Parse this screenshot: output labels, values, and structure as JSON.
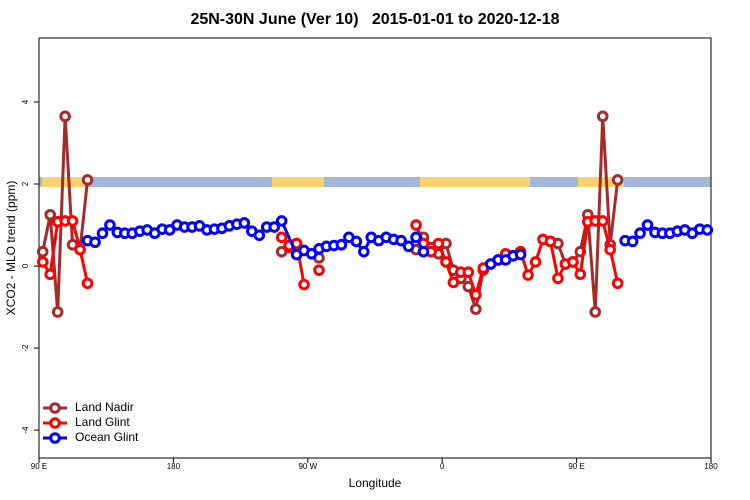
{
  "chart_data": {
    "type": "line",
    "title": "25N-30N June (Ver 10)   2015-01-01 to 2020-12-18",
    "xlabel": "Longitude",
    "ylabel": "XCO2 - MLO trend (ppm)",
    "xlim": [
      90,
      540
    ],
    "ylim": [
      -4.68,
      5.56
    ],
    "xticks": [
      {
        "value": 90,
        "label": "90 E"
      },
      {
        "value": 180,
        "label": "180"
      },
      {
        "value": 270,
        "label": "90 W"
      },
      {
        "value": 360,
        "label": "0"
      },
      {
        "value": 450,
        "label": "90 E"
      },
      {
        "value": 540,
        "label": "180"
      }
    ],
    "yticks": [
      -4,
      -2,
      0,
      2,
      4
    ],
    "legend": "bottom-left",
    "series": [
      {
        "name": "Land Nadir",
        "color": "#a52a2a",
        "x": [
          92.5,
          97.5,
          102.5,
          107.5,
          112.5,
          117.5,
          122.5,
          127.5,
          252.5,
          257.5,
          262.5,
          277.5,
          282.5,
          342.5,
          347.5,
          352.5,
          357.5,
          362.5,
          367.5,
          372.5,
          377.5,
          382.5,
          387.5,
          392.5,
          432.5,
          437.5,
          442.5,
          447.5,
          452.5,
          457.5,
          462.5,
          467.5,
          472.5,
          477.5
        ],
        "values": [
          0.35,
          1.25,
          -1.12,
          3.65,
          0.52,
          0.4,
          2.1,
          null,
          0.35,
          0.45,
          0.55,
          0.2,
          null,
          0.4,
          0.7,
          0.45,
          0.3,
          0.55,
          -0.1,
          -0.3,
          -0.5,
          -1.05,
          -0.1,
          null,
          0.6,
          0.55,
          0.05,
          0.1,
          0.35,
          1.25,
          -1.12,
          3.65,
          0.52,
          2.1
        ]
      },
      {
        "name": "Land Glint",
        "color": "#ff0000",
        "x": [
          92.5,
          97.5,
          102.5,
          107.5,
          112.5,
          117.5,
          122.5,
          127.5,
          252.5,
          257.5,
          262.5,
          267.5,
          272.5,
          277.5,
          282.5,
          342.5,
          347.5,
          352.5,
          357.5,
          362.5,
          367.5,
          372.5,
          377.5,
          382.5,
          387.5,
          392.5,
          397.5,
          402.5,
          407.5,
          412.5,
          417.5,
          422.5,
          427.5,
          432.5,
          437.5,
          442.5,
          447.5,
          452.5,
          457.5,
          462.5,
          467.5,
          472.5,
          477.5
        ],
        "values": [
          0.1,
          -0.2,
          1.08,
          1.1,
          1.1,
          0.4,
          -0.42,
          null,
          0.7,
          0.5,
          0.55,
          -0.45,
          null,
          -0.1,
          null,
          1.0,
          0.55,
          0.35,
          0.55,
          0.1,
          -0.4,
          -0.15,
          -0.15,
          -0.7,
          -0.05,
          0.05,
          0.15,
          0.3,
          0.25,
          0.35,
          -0.22,
          0.1,
          0.65,
          0.6,
          -0.3,
          0.05,
          0.1,
          -0.2,
          1.08,
          1.1,
          1.1,
          0.4,
          -0.42
        ]
      },
      {
        "name": "Ocean Glint",
        "color": "#0000ff",
        "x": [
          122.5,
          127.5,
          132.5,
          137.5,
          142.5,
          147.5,
          152.5,
          157.5,
          162.5,
          167.5,
          172.5,
          177.5,
          182.5,
          187.5,
          192.5,
          197.5,
          202.5,
          207.5,
          212.5,
          217.5,
          222.5,
          227.5,
          232.5,
          237.5,
          242.5,
          247.5,
          252.5,
          262.5,
          267.5,
          272.5,
          277.5,
          282.5,
          287.5,
          292.5,
          297.5,
          302.5,
          307.5,
          312.5,
          317.5,
          322.5,
          327.5,
          332.5,
          337.5,
          342.5,
          347.5,
          352.5,
          392.5,
          397.5,
          402.5,
          407.5,
          412.5,
          417.5,
          482.5,
          487.5,
          492.5,
          497.5,
          502.5,
          507.5,
          512.5,
          517.5,
          522.5,
          527.5,
          532.5,
          537.5
        ],
        "values": [
          0.62,
          0.58,
          0.8,
          1.0,
          0.82,
          0.8,
          0.8,
          0.85,
          0.88,
          0.8,
          0.9,
          0.88,
          1.0,
          0.95,
          0.95,
          0.98,
          0.88,
          0.9,
          0.92,
          0.98,
          1.02,
          1.05,
          0.85,
          0.75,
          0.95,
          0.95,
          1.1,
          0.28,
          0.38,
          0.3,
          0.42,
          0.48,
          0.5,
          0.52,
          0.7,
          0.6,
          0.35,
          0.7,
          0.62,
          0.7,
          0.65,
          0.62,
          0.48,
          0.7,
          0.35,
          null,
          0.05,
          0.15,
          0.15,
          0.25,
          0.28,
          null,
          0.62,
          0.6,
          0.8,
          1.0,
          0.82,
          0.8,
          0.8,
          0.85,
          0.88,
          0.8,
          0.9,
          0.88
        ]
      }
    ]
  }
}
